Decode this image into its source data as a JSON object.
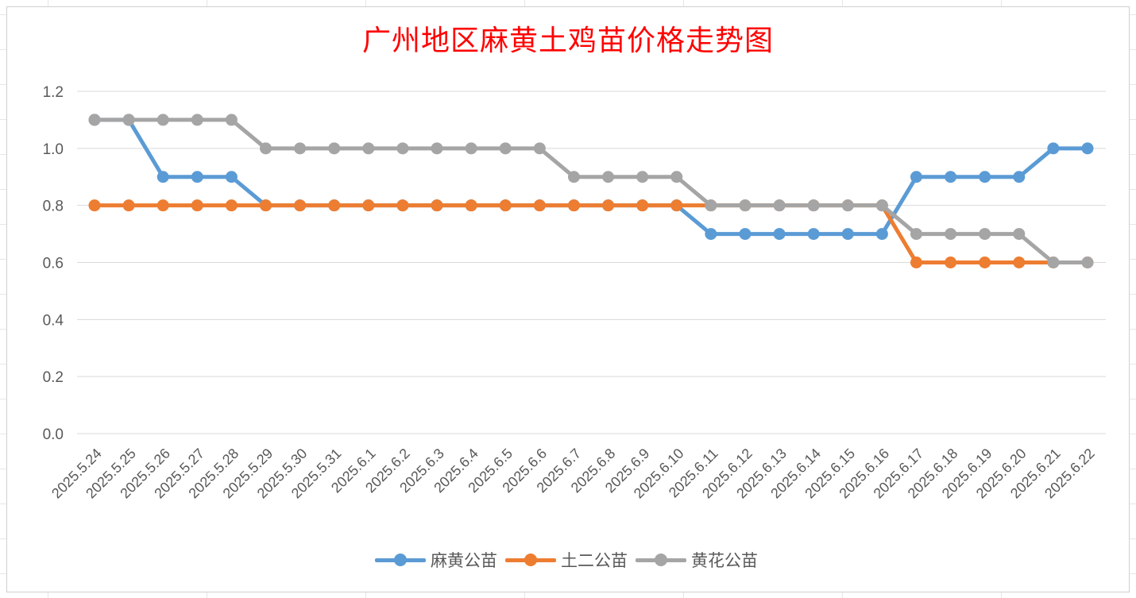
{
  "chart_data": {
    "type": "line",
    "title": "广州地区麻黄土鸡苗价格走势图",
    "xlabel": "",
    "ylabel": "",
    "ylim": [
      0,
      1.2
    ],
    "yticks": [
      "0.0",
      "0.2",
      "0.4",
      "0.6",
      "0.8",
      "1.0",
      "1.2"
    ],
    "grid": true,
    "legend_position": "bottom",
    "categories": [
      "2025.5.24",
      "2025.5.25",
      "2025.5.26",
      "2025.5.27",
      "2025.5.28",
      "2025.5.29",
      "2025.5.30",
      "2025.5.31",
      "2025.6.1",
      "2025.6.2",
      "2025.6.3",
      "2025.6.4",
      "2025.6.5",
      "2025.6.6",
      "2025.6.7",
      "2025.6.8",
      "2025.6.9",
      "2025.6.10",
      "2025.6.11",
      "2025.6.12",
      "2025.6.13",
      "2025.6.14",
      "2025.6.15",
      "2025.6.16",
      "2025.6.17",
      "2025.6.18",
      "2025.6.19",
      "2025.6.20",
      "2025.6.21",
      "2025.6.22"
    ],
    "series": [
      {
        "name": "麻黄公苗",
        "color": "#5b9bd5",
        "values": [
          1.1,
          1.1,
          0.9,
          0.9,
          0.9,
          0.8,
          0.8,
          0.8,
          0.8,
          0.8,
          0.8,
          0.8,
          0.8,
          0.8,
          0.8,
          0.8,
          0.8,
          0.8,
          0.7,
          0.7,
          0.7,
          0.7,
          0.7,
          0.7,
          0.9,
          0.9,
          0.9,
          0.9,
          1.0,
          1.0
        ]
      },
      {
        "name": "土二公苗",
        "color": "#ed7d31",
        "values": [
          0.8,
          0.8,
          0.8,
          0.8,
          0.8,
          0.8,
          0.8,
          0.8,
          0.8,
          0.8,
          0.8,
          0.8,
          0.8,
          0.8,
          0.8,
          0.8,
          0.8,
          0.8,
          0.8,
          0.8,
          0.8,
          0.8,
          0.8,
          0.8,
          0.6,
          0.6,
          0.6,
          0.6,
          0.6,
          0.6
        ]
      },
      {
        "name": "黄花公苗",
        "color": "#a5a5a5",
        "values": [
          1.1,
          1.1,
          1.1,
          1.1,
          1.1,
          1.0,
          1.0,
          1.0,
          1.0,
          1.0,
          1.0,
          1.0,
          1.0,
          1.0,
          0.9,
          0.9,
          0.9,
          0.9,
          0.8,
          0.8,
          0.8,
          0.8,
          0.8,
          0.8,
          0.7,
          0.7,
          0.7,
          0.7,
          0.6,
          0.6
        ]
      }
    ]
  }
}
